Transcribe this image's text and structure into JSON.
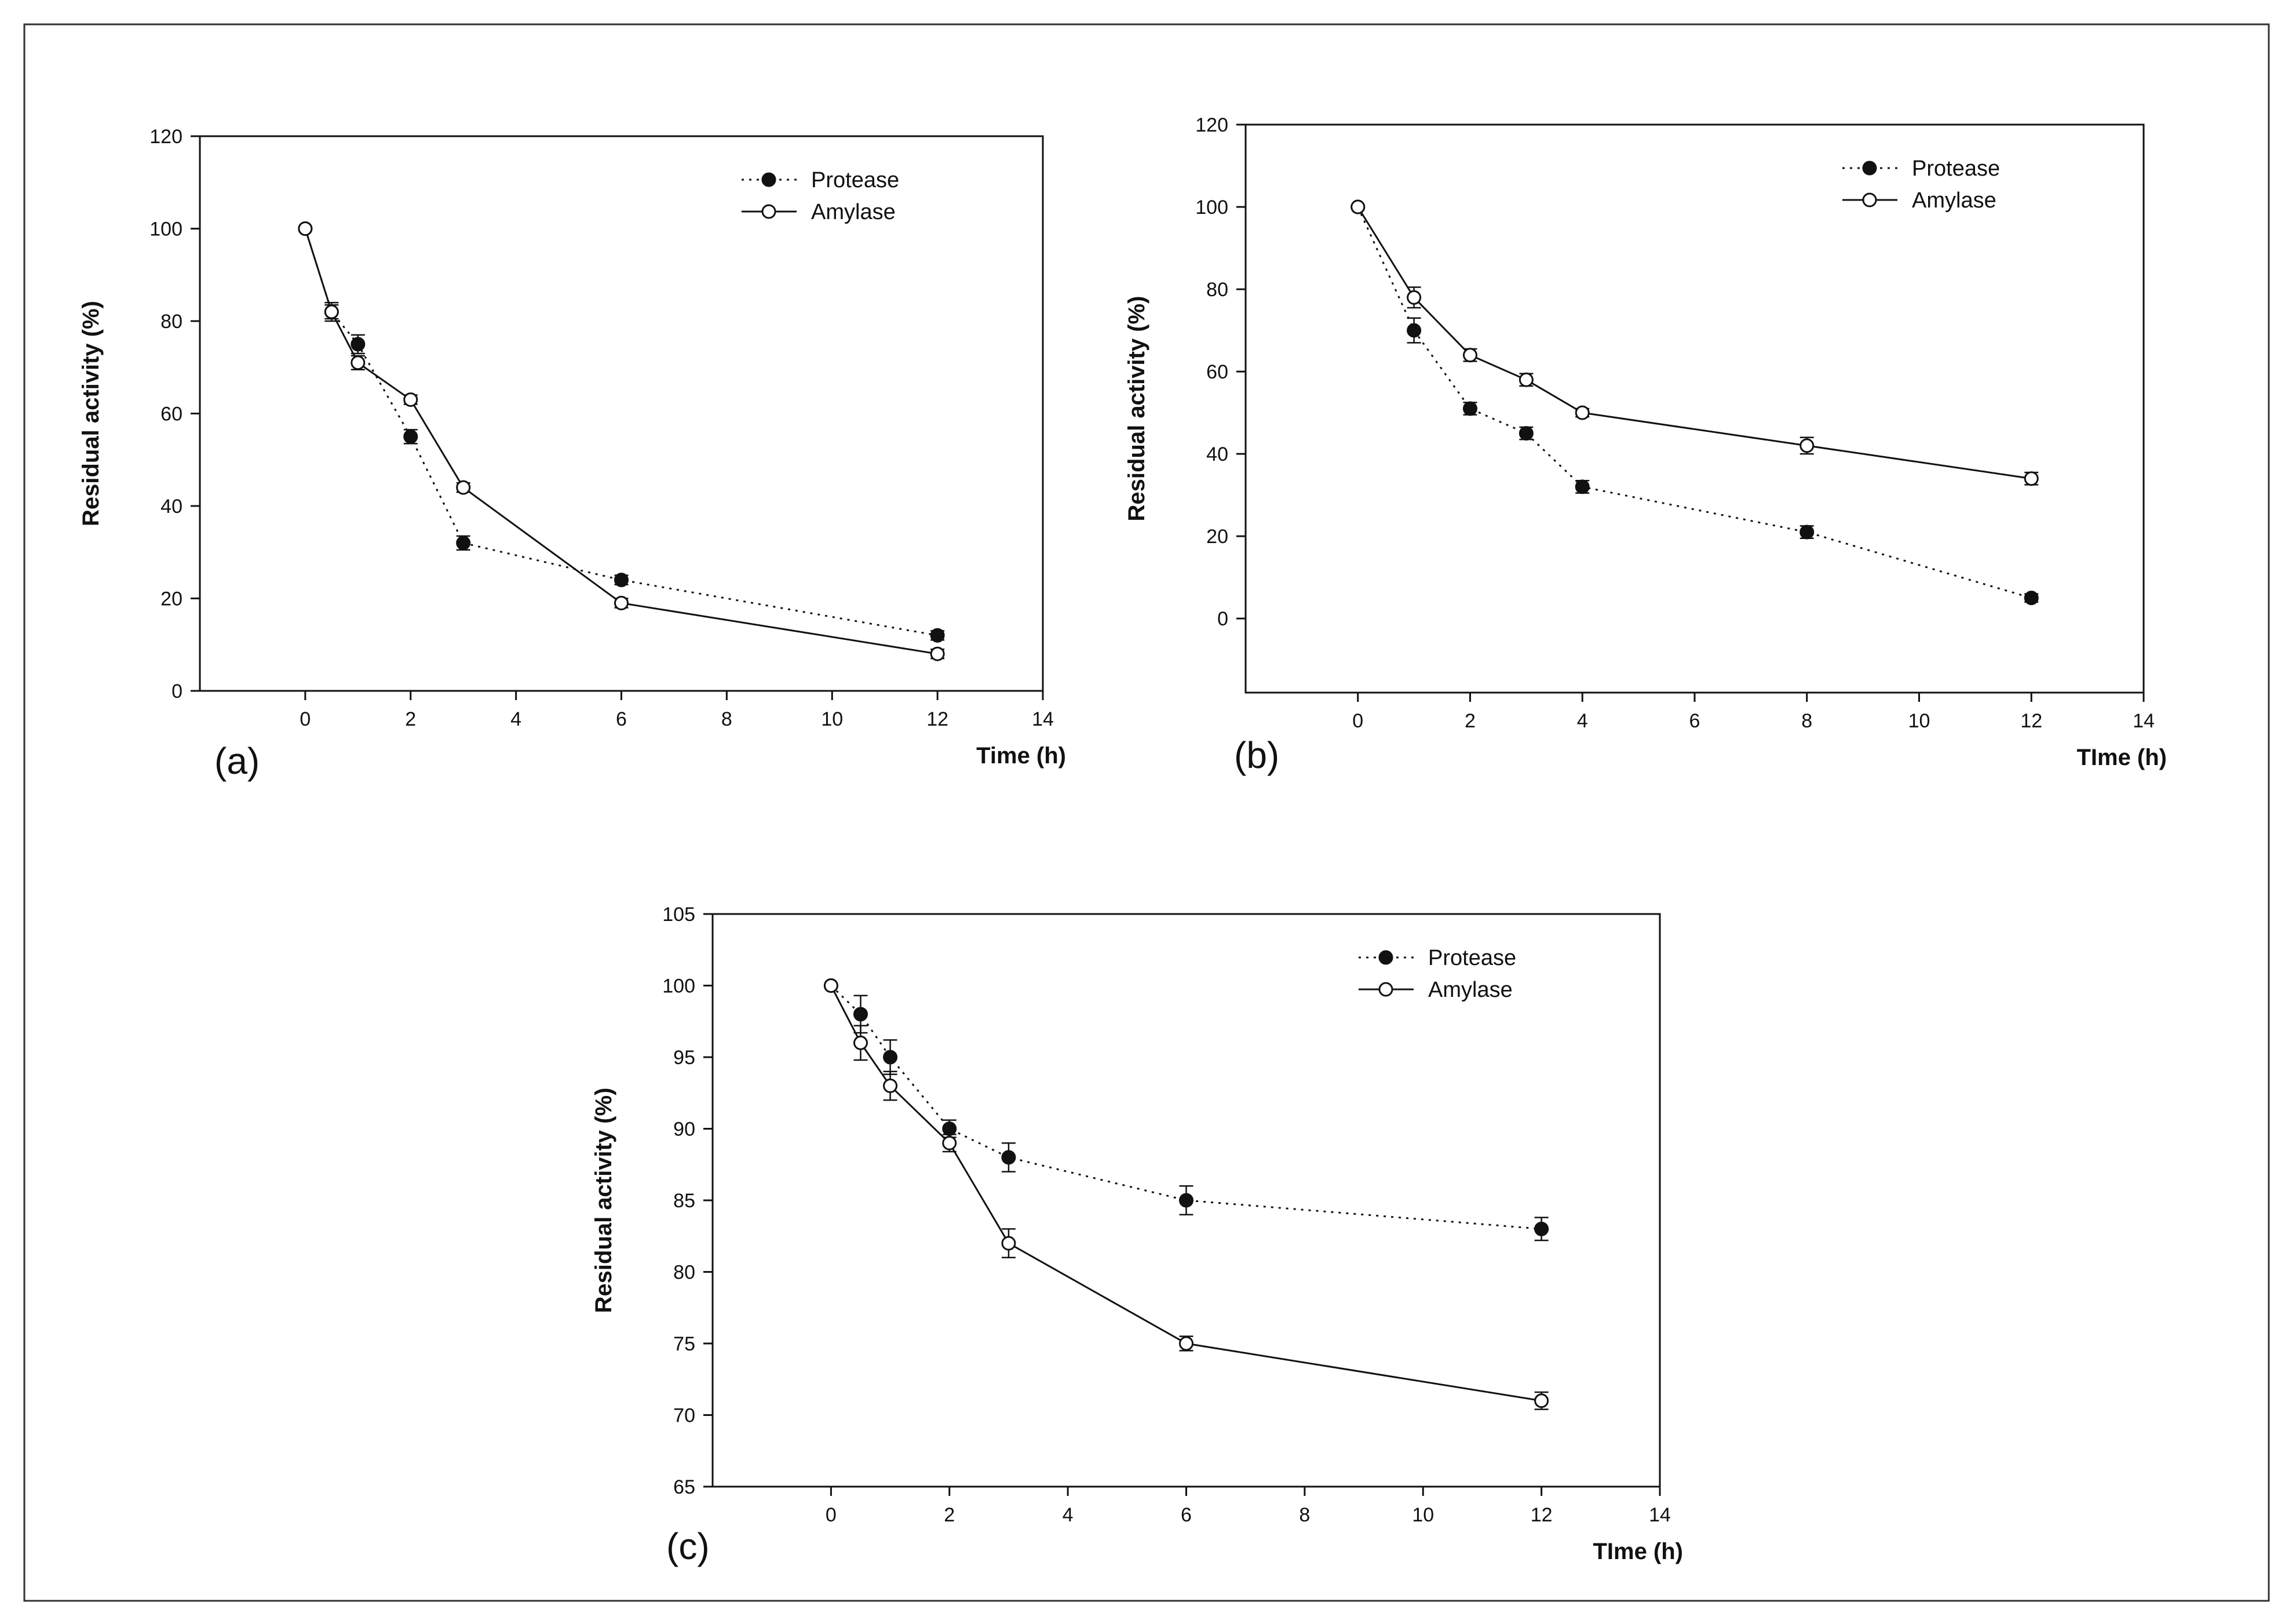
{
  "chart_data": [
    {
      "type": "line",
      "panel_label": "(a)",
      "title": "",
      "xlabel": "Time (h)",
      "ylabel": "Residual activity (%)",
      "xlim": [
        -2,
        14
      ],
      "ylim": [
        0,
        120
      ],
      "xticks": [
        0,
        2,
        4,
        6,
        8,
        10,
        12,
        14
      ],
      "yticks": [
        0,
        20,
        40,
        60,
        80,
        100,
        120
      ],
      "legend_position": "top-right",
      "series": [
        {
          "name": "Protease",
          "style": "dotted",
          "marker": "filled-circle",
          "x": [
            0,
            0.5,
            1,
            2,
            3,
            6,
            12
          ],
          "y": [
            100,
            82,
            75,
            55,
            32,
            24,
            12
          ],
          "err": [
            0,
            1.5,
            2,
            1.5,
            1.5,
            1,
            1
          ]
        },
        {
          "name": "Amylase",
          "style": "solid",
          "marker": "open-circle",
          "x": [
            0,
            0.5,
            1,
            2,
            3,
            6,
            12
          ],
          "y": [
            100,
            82,
            71,
            63,
            44,
            19,
            8
          ],
          "err": [
            0,
            2,
            1.5,
            1,
            1,
            1,
            1
          ]
        }
      ]
    },
    {
      "type": "line",
      "panel_label": "(b)",
      "title": "",
      "xlabel": "TIme (h)",
      "ylabel": "Residual activity (%)",
      "xlim": [
        -2,
        14
      ],
      "ylim": [
        -18,
        120
      ],
      "xticks": [
        0,
        2,
        4,
        6,
        8,
        10,
        12,
        14
      ],
      "yticks": [
        0,
        20,
        40,
        60,
        80,
        100,
        120
      ],
      "legend_position": "top-right",
      "series": [
        {
          "name": "Protease",
          "style": "dotted",
          "marker": "filled-circle",
          "x": [
            0,
            1,
            2,
            3,
            4,
            8,
            12
          ],
          "y": [
            100,
            70,
            51,
            45,
            32,
            21,
            5
          ],
          "err": [
            0,
            3,
            1.5,
            1.5,
            1.5,
            1.5,
            1
          ]
        },
        {
          "name": "Amylase",
          "style": "solid",
          "marker": "open-circle",
          "x": [
            0,
            1,
            2,
            3,
            4,
            8,
            12
          ],
          "y": [
            100,
            78,
            64,
            58,
            50,
            42,
            34
          ],
          "err": [
            0,
            2.5,
            1.5,
            1.5,
            1,
            2,
            1.5
          ]
        }
      ]
    },
    {
      "type": "line",
      "panel_label": "(c)",
      "title": "",
      "xlabel": "TIme (h)",
      "ylabel": "Residual activity (%)",
      "xlim": [
        -2,
        14
      ],
      "ylim": [
        65,
        105
      ],
      "xticks": [
        0,
        2,
        4,
        6,
        8,
        10,
        12,
        14
      ],
      "yticks": [
        65,
        70,
        75,
        80,
        85,
        90,
        95,
        100,
        105
      ],
      "legend_position": "top-right",
      "series": [
        {
          "name": "Protease",
          "style": "dotted",
          "marker": "filled-circle",
          "x": [
            0,
            0.5,
            1,
            2,
            3,
            6,
            12
          ],
          "y": [
            100,
            98,
            95,
            90,
            88,
            85,
            83
          ],
          "err": [
            0,
            1.3,
            1.2,
            0.6,
            1,
            1,
            0.8
          ]
        },
        {
          "name": "Amylase",
          "style": "solid",
          "marker": "open-circle",
          "x": [
            0,
            0.5,
            1,
            2,
            3,
            6,
            12
          ],
          "y": [
            100,
            96,
            93,
            89,
            82,
            75,
            71
          ],
          "err": [
            0,
            1.2,
            1,
            0.6,
            1,
            0.5,
            0.6
          ]
        }
      ]
    }
  ]
}
